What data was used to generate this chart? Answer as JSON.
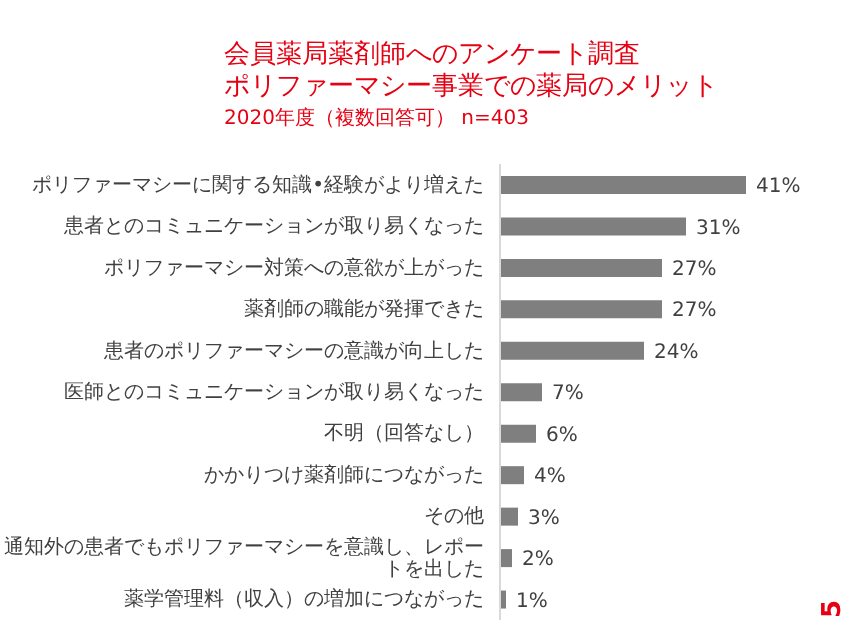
{
  "chart_data": {
    "type": "bar",
    "orientation": "horizontal",
    "title": "会員薬局薬剤師へのアンケート調査",
    "subtitle": "ポリファーマシー事業での薬局のメリット",
    "categories": [
      "ポリファーマシーに関する知識•経験がより増えた",
      "患者とのコミュニケーションが取り易くなった",
      "ポリファーマシー対策への意欲が上がった",
      "薬剤師の職能が発揮できた",
      "患者のポリファーマシーの意識が向上した",
      "医師とのコミュニケーションが取り易くなった",
      "不明（回答なし）",
      "かかりつけ薬剤師につながった",
      "その他",
      "通知外の患者でもポリファーマシーを意識し、レポートを出した",
      "薬学管理料（収入）の増加につながった"
    ],
    "values": [
      41,
      31,
      27,
      27,
      24,
      7,
      6,
      4,
      3,
      2,
      1
    ],
    "value_labels": [
      "41%",
      "31%",
      "27%",
      "27%",
      "24%",
      "7%",
      "6%",
      "4%",
      "3%",
      "2%",
      "1%"
    ],
    "color": "#7f7f7f",
    "tick_labels": "y",
    "annotations": [
      "2020年度（複数回答可） n=403",
      "5"
    ]
  }
}
